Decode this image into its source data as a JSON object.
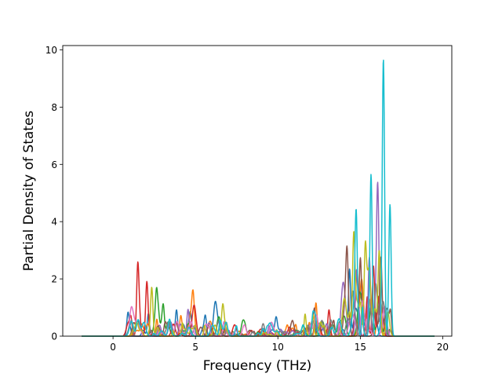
{
  "chart_data": {
    "type": "line",
    "title": "",
    "xlabel": "Frequency (THz)",
    "ylabel": "Partial Density of States",
    "xlim": [
      -3.05,
      20.55
    ],
    "ylim": [
      0,
      10.15
    ],
    "xticks": [
      0,
      5,
      10,
      15,
      20
    ],
    "yticks": [
      0,
      2,
      4,
      6,
      8,
      10
    ],
    "grid": false,
    "legend": "none",
    "series_colors": [
      "#1f77b4",
      "#ff7f0e",
      "#2ca02c",
      "#d62728",
      "#9467bd",
      "#8c564b",
      "#e377c2",
      "#7f7f7f",
      "#bcbd22",
      "#17becf"
    ],
    "x_range": [
      -1.9,
      19.5
    ],
    "notable_peaks": [
      {
        "color": "#d62728",
        "x": 1.5,
        "y": 2.37
      },
      {
        "color": "#d62728",
        "x": 2.05,
        "y": 1.75
      },
      {
        "color": "#bcbd22",
        "x": 2.35,
        "y": 1.65
      },
      {
        "color": "#2ca02c",
        "x": 2.65,
        "y": 1.28
      },
      {
        "color": "#2ca02c",
        "x": 3.05,
        "y": 0.95
      },
      {
        "color": "#1f77b4",
        "x": 3.85,
        "y": 0.92
      },
      {
        "color": "#9467bd",
        "x": 4.55,
        "y": 0.94
      },
      {
        "color": "#ff7f0e",
        "x": 4.85,
        "y": 0.92
      },
      {
        "color": "#1f77b4",
        "x": 5.6,
        "y": 0.7
      },
      {
        "color": "#bcbd22",
        "x": 6.65,
        "y": 0.72
      },
      {
        "color": "#1f77b4",
        "x": 9.9,
        "y": 0.5
      },
      {
        "color": "#ff7f0e",
        "x": 12.3,
        "y": 0.88
      },
      {
        "color": "#d62728",
        "x": 13.1,
        "y": 0.92
      },
      {
        "color": "#8c564b",
        "x": 14.2,
        "y": 2.25
      },
      {
        "color": "#1f77b4",
        "x": 14.35,
        "y": 2.35
      },
      {
        "color": "#bcbd22",
        "x": 14.6,
        "y": 2.52
      },
      {
        "color": "#17becf",
        "x": 14.75,
        "y": 3.65
      },
      {
        "color": "#8c564b",
        "x": 15.0,
        "y": 2.65
      },
      {
        "color": "#bcbd22",
        "x": 15.3,
        "y": 2.85
      },
      {
        "color": "#9467bd",
        "x": 15.55,
        "y": 2.75
      },
      {
        "color": "#17becf",
        "x": 15.65,
        "y": 5.65
      },
      {
        "color": "#d62728",
        "x": 15.8,
        "y": 2.45
      },
      {
        "color": "#9467bd",
        "x": 16.05,
        "y": 5.0
      },
      {
        "color": "#bcbd22",
        "x": 16.15,
        "y": 2.75
      },
      {
        "color": "#8c564b",
        "x": 16.25,
        "y": 2.65
      },
      {
        "color": "#17becf",
        "x": 16.4,
        "y": 9.68
      },
      {
        "color": "#17becf",
        "x": 16.8,
        "y": 4.6
      }
    ]
  }
}
